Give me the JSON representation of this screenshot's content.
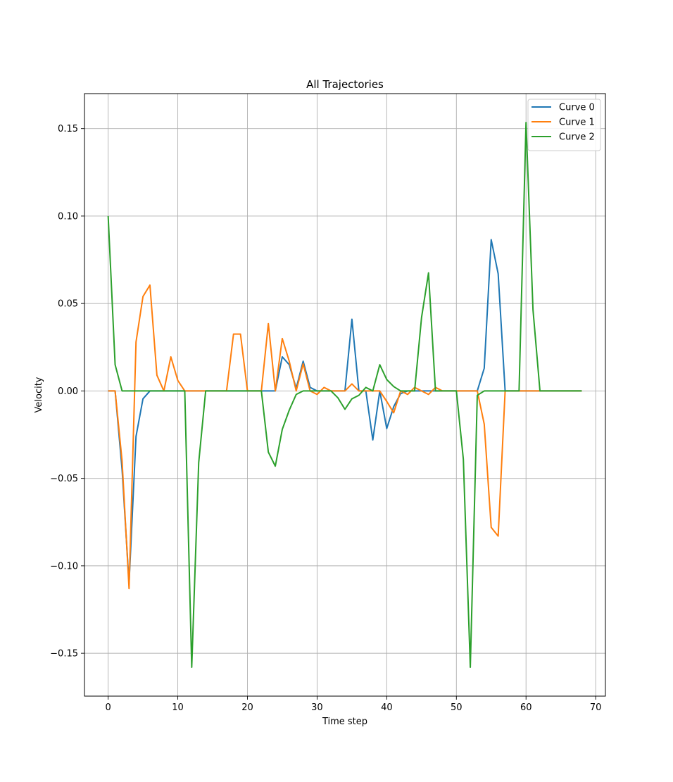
{
  "chart_data": {
    "type": "line",
    "title": "All Trajectories",
    "xlabel": "Time step",
    "ylabel": "Velocity",
    "xlim": [
      -3.4,
      71.4
    ],
    "ylim": [
      -0.1745,
      0.17
    ],
    "xticks": [
      0,
      10,
      20,
      30,
      40,
      50,
      60,
      70
    ],
    "xtick_labels": [
      "0",
      "10",
      "20",
      "30",
      "40",
      "50",
      "60",
      "70"
    ],
    "yticks": [
      0.15,
      0.1,
      0.05,
      0.0,
      -0.05,
      -0.1,
      -0.15
    ],
    "ytick_labels": [
      "0.15",
      "0.10",
      "0.05",
      "0.00",
      "−0.05",
      "−0.10",
      "−0.15"
    ],
    "grid": true,
    "legend_position": "top-right",
    "series": [
      {
        "name": "Curve 0",
        "color": "#1f77b4",
        "x": [
          0,
          1,
          2,
          3,
          4,
          5,
          6,
          7,
          8,
          9,
          10,
          11,
          12,
          13,
          14,
          15,
          16,
          17,
          18,
          19,
          20,
          21,
          22,
          23,
          24,
          25,
          26,
          27,
          28,
          29,
          30,
          31,
          32,
          33,
          34,
          35,
          36,
          37,
          38,
          39,
          40,
          41,
          42,
          43,
          44,
          45,
          46,
          47,
          48,
          49,
          50,
          51,
          52,
          53,
          54,
          55,
          56,
          57,
          58,
          59,
          60,
          61,
          62,
          63,
          64,
          65,
          66,
          67,
          68
        ],
        "y": [
          0,
          0,
          -0.045,
          -0.11,
          -0.026,
          -0.0045,
          0,
          0,
          0,
          0,
          0,
          0,
          0,
          0,
          0,
          0,
          0,
          0,
          0,
          0,
          0,
          0,
          0,
          0,
          0,
          0.0195,
          0.015,
          0.0015,
          0.017,
          0.002,
          0,
          0,
          0,
          0,
          0,
          0.041,
          0,
          0,
          -0.028,
          0,
          -0.0215,
          -0.009,
          -0.0015,
          0,
          0,
          0,
          0,
          0,
          0,
          0,
          0,
          0,
          0,
          0,
          0.013,
          0.0865,
          0.067,
          0,
          0,
          0,
          0,
          0,
          0,
          0,
          0,
          0,
          0,
          0,
          0
        ]
      },
      {
        "name": "Curve 1",
        "color": "#ff7f0e",
        "x": [
          0,
          1,
          2,
          3,
          4,
          5,
          6,
          7,
          8,
          9,
          10,
          11,
          12,
          13,
          14,
          15,
          16,
          17,
          18,
          19,
          20,
          21,
          22,
          23,
          24,
          25,
          26,
          27,
          28,
          29,
          30,
          31,
          32,
          33,
          34,
          35,
          36,
          37,
          38,
          39,
          40,
          41,
          42,
          43,
          44,
          45,
          46,
          47,
          48,
          49,
          50,
          51,
          52,
          53,
          54,
          55,
          56,
          57,
          58,
          59,
          60,
          61,
          62,
          63,
          64,
          65,
          66,
          67,
          68
        ],
        "y": [
          0,
          0,
          -0.04,
          -0.113,
          0.028,
          0.054,
          0.0605,
          0.009,
          0,
          0.0195,
          0.006,
          0,
          0,
          0,
          0,
          0,
          0,
          0,
          0.0325,
          0.0325,
          0,
          0,
          0,
          0.0385,
          0,
          0.03,
          0.017,
          0,
          0.0155,
          0,
          -0.002,
          0.002,
          0,
          0,
          0,
          0.004,
          0,
          0,
          0,
          0,
          -0.006,
          -0.0125,
          0,
          -0.002,
          0.002,
          0,
          -0.002,
          0.002,
          0,
          0,
          0,
          0,
          0,
          0,
          -0.019,
          -0.078,
          -0.083,
          0,
          0,
          0,
          0,
          0,
          0,
          0,
          0,
          0,
          0,
          0,
          0
        ]
      },
      {
        "name": "Curve 2",
        "color": "#2ca02c",
        "x": [
          0,
          1,
          2,
          3,
          4,
          5,
          6,
          7,
          8,
          9,
          10,
          11,
          12,
          13,
          14,
          15,
          16,
          17,
          18,
          19,
          20,
          21,
          22,
          23,
          24,
          25,
          26,
          27,
          28,
          29,
          30,
          31,
          32,
          33,
          34,
          35,
          36,
          37,
          38,
          39,
          40,
          41,
          42,
          43,
          44,
          45,
          46,
          47,
          48,
          49,
          50,
          51,
          52,
          53,
          54,
          55,
          56,
          57,
          58,
          59,
          60,
          61,
          62,
          63,
          64,
          65,
          66,
          67,
          68
        ],
        "y": [
          0.1,
          0.015,
          0,
          0,
          0,
          0,
          0,
          0,
          0,
          0,
          0,
          0,
          -0.158,
          -0.041,
          0,
          0,
          0,
          0,
          0,
          0,
          0,
          0,
          0,
          -0.035,
          -0.043,
          -0.022,
          -0.011,
          -0.002,
          0,
          0,
          0,
          0,
          0,
          -0.004,
          -0.0105,
          -0.0045,
          -0.0025,
          0.002,
          0,
          0.015,
          0.0065,
          0.0025,
          0,
          0,
          0,
          0.042,
          0.0675,
          0,
          0,
          0,
          0,
          -0.039,
          -0.158,
          -0.0025,
          0,
          0,
          0,
          0,
          0,
          0,
          0.1535,
          0.0465,
          0,
          0,
          0,
          0,
          0,
          0,
          0
        ]
      }
    ]
  }
}
